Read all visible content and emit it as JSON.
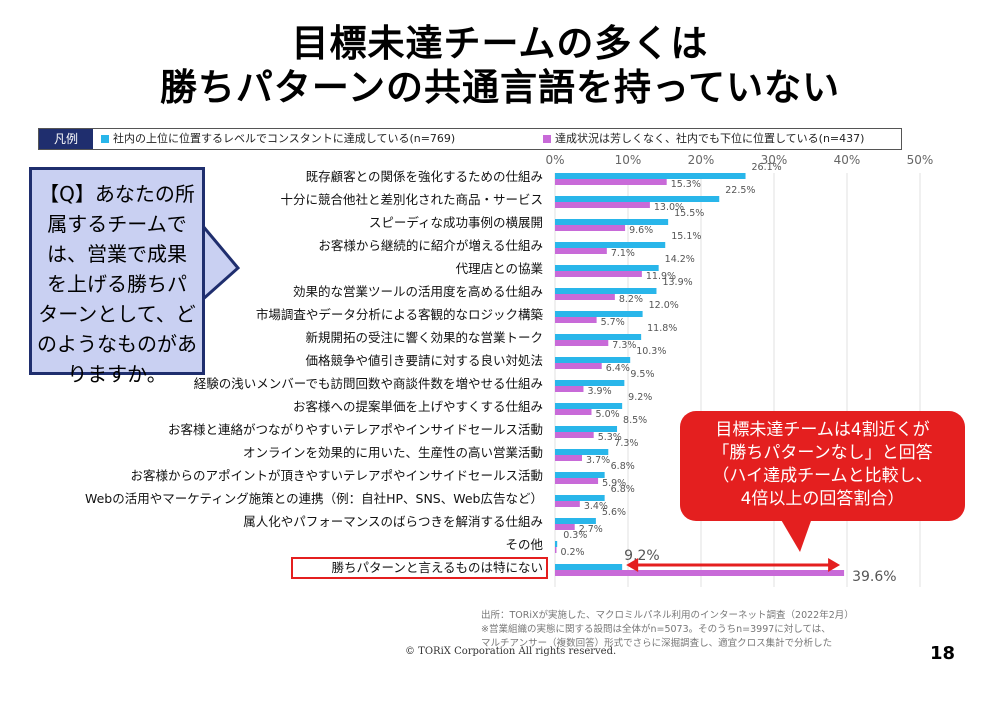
{
  "title_line1": "目標未達チームの多くは",
  "title_line2": "勝ちパターンの共通言語を持っていない",
  "legend": {
    "tag": "凡例",
    "series1": "社内の上位に位置するレベルでコンスタントに達成している(n=769)",
    "series2": "達成状況は芳しくなく、社内でも下位に位置している(n=437)"
  },
  "question": "【Q】あなたの所\n属するチームで\nは、営業で成果\nを上げる勝ちパ\nターンとして、ど\nのようなものがあ\nりますか。",
  "callout": "目標未達チームは4割近くが\n「勝ちパターンなし」と回答\n（ハイ達成チームと比較し、\n4倍以上の回答割合）",
  "footnote": "出所：TORiXが実施した、マクロミルパネル利用のインターネット調査（2022年2月）\n※営業組織の実態に関する設問は全体がn=5073。そのうちn=3997に対しては、\nマルチアンサー（複数回答）形式でさらに深掘調査し、適宜クロス集計で分析した",
  "copyright": "© TORiX Corporation All rights reserved.",
  "page_number": "18",
  "colors": {
    "series1": "#29b6ea",
    "series2": "#c86ad8",
    "highlight": "#e41f1f",
    "navy": "#1f2e6e"
  },
  "chart_data": {
    "type": "bar",
    "orientation": "horizontal",
    "categories": [
      "既存顧客との関係を強化するための仕組み",
      "十分に競合他社と差別化された商品・サービス",
      "スピーディな成功事例の横展開",
      "お客様から継続的に紹介が増える仕組み",
      "代理店との協業",
      "効果的な営業ツールの活用度を高める仕組み",
      "市場調査やデータ分析による客観的なロジック構築",
      "新規開拓の受注に響く効果的な営業トーク",
      "価格競争や値引き要請に対する良い対処法",
      "経験の浅いメンバーでも訪問回数や商談件数を増やせる仕組み",
      "お客様への提案単価を上げやすくする仕組み",
      "お客様と連絡がつながりやすいテレアポやインサイドセールス活動",
      "オンラインを効果的に用いた、生産性の高い営業活動",
      "お客様からのアポイントが頂きやすいテレアポやインサイドセールス活動",
      "Webの活用やマーケティング施策との連携（例：自社HP、SNS、Web広告など）",
      "属人化やパフォーマンスのばらつきを解消する仕組み",
      "その他",
      "勝ちパターンと言えるものは特にない"
    ],
    "series": [
      {
        "name": "社内の上位に位置するレベルでコンスタントに達成している(n=769)",
        "values": [
          26.1,
          22.5,
          15.5,
          15.1,
          14.2,
          13.9,
          12.0,
          11.8,
          10.3,
          9.5,
          9.2,
          8.5,
          7.3,
          6.8,
          6.8,
          5.6,
          0.3,
          9.2
        ]
      },
      {
        "name": "達成状況は芳しくなく、社内でも下位に位置している(n=437)",
        "values": [
          15.3,
          13.0,
          9.6,
          7.1,
          11.9,
          8.2,
          5.7,
          7.3,
          6.4,
          3.9,
          5.0,
          5.3,
          3.7,
          5.9,
          3.4,
          2.7,
          0.2,
          39.6
        ]
      }
    ],
    "xticks": [
      "0%",
      "10%",
      "20%",
      "30%",
      "40%",
      "50%"
    ],
    "xlim": [
      0,
      50
    ],
    "grid": true,
    "legend": "top",
    "highlighted_category": "勝ちパターンと言えるものは特にない"
  }
}
